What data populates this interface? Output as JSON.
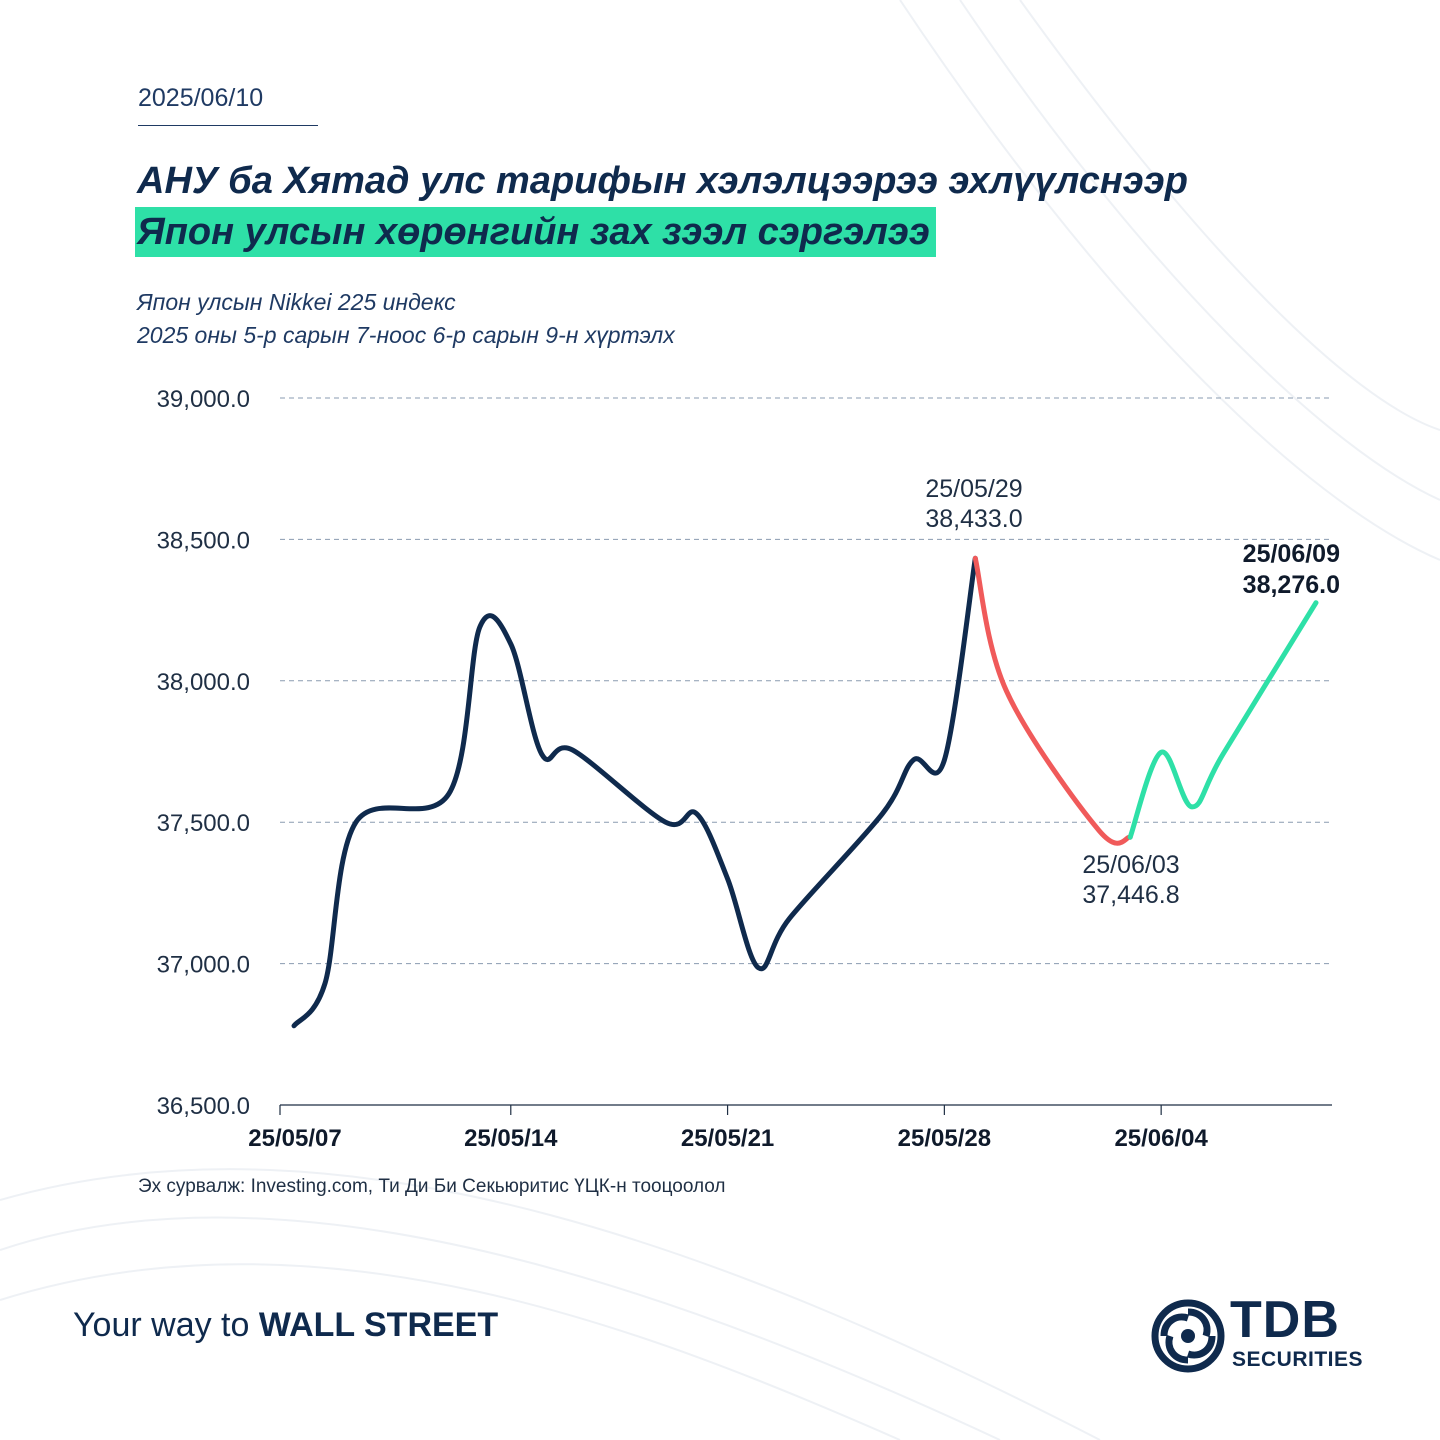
{
  "header": {
    "date": "2025/06/10",
    "title_line1": "АНУ ба Хятад улс тарифын хэлэлцээрээ эхлүүлснээр",
    "title_line2": "Япон улсын хөрөнгийн зах зээл сэргэлээ",
    "subtitle_line1": "Япон улсын Nikkei 225 индекс",
    "subtitle_line2": "2025 оны 5-р сарын 7-ноос 6-р сарын 9-н хүртэлх"
  },
  "colors": {
    "navy": "#0f2a4d",
    "accent_green": "#2ee0a7",
    "decline_red": "#f05a5a",
    "grid": "#8a9bb0"
  },
  "chart_data": {
    "type": "line",
    "title": "Япон улсын Nikkei 225 индекс",
    "xlabel": "",
    "ylabel": "",
    "ylim": [
      36500,
      39000
    ],
    "yticks": [
      36500,
      37000,
      37500,
      38000,
      38500,
      39000
    ],
    "ytick_labels": [
      "36,500.0",
      "37,000.0",
      "37,500.0",
      "38,000.0",
      "38,500.0",
      "39,000.0"
    ],
    "xtick_labels": [
      "25/05/07",
      "25/05/14",
      "25/05/21",
      "25/05/28",
      "25/06/04"
    ],
    "xtick_dates": [
      "2025-05-07",
      "2025-05-14",
      "2025-05-21",
      "2025-05-28",
      "2025-06-04"
    ],
    "xlim": [
      "2025-05-07",
      "2025-06-13"
    ],
    "grid": true,
    "series": [
      {
        "segment": "rise",
        "color": "#0f2a4d",
        "points": [
          [
            "2025-05-07",
            36780
          ],
          [
            "2025-05-08",
            36930
          ],
          [
            "2025-05-09",
            37500
          ],
          [
            "2025-05-12",
            37600
          ],
          [
            "2025-05-13",
            38190
          ],
          [
            "2025-05-14",
            38130
          ],
          [
            "2025-05-15",
            37740
          ],
          [
            "2025-05-16",
            37755
          ],
          [
            "2025-05-19",
            37500
          ],
          [
            "2025-05-20",
            37530
          ],
          [
            "2025-05-21",
            37300
          ],
          [
            "2025-05-22",
            36985
          ],
          [
            "2025-05-23",
            37160
          ],
          [
            "2025-05-26",
            37530
          ],
          [
            "2025-05-27",
            37720
          ],
          [
            "2025-05-28",
            37720
          ],
          [
            "2025-05-29",
            38433
          ]
        ]
      },
      {
        "segment": "decline",
        "color": "#f05a5a",
        "points": [
          [
            "2025-05-29",
            38433
          ],
          [
            "2025-05-30",
            37965
          ],
          [
            "2025-06-02",
            37470
          ],
          [
            "2025-06-03",
            37446.8
          ]
        ]
      },
      {
        "segment": "recovery",
        "color": "#2ee0a7",
        "points": [
          [
            "2025-06-03",
            37446.8
          ],
          [
            "2025-06-04",
            37747
          ],
          [
            "2025-06-05",
            37554
          ],
          [
            "2025-06-06",
            37741
          ],
          [
            "2025-06-09",
            38276
          ]
        ]
      }
    ],
    "annotations": [
      {
        "date_label": "25/05/29",
        "value_label": "38,433.0",
        "bold": false
      },
      {
        "date_label": "25/06/03",
        "value_label": "37,446.8",
        "bold": false
      },
      {
        "date_label": "25/06/09",
        "value_label": "38,276.0",
        "bold": true
      }
    ]
  },
  "footer": {
    "source": "Эх сурвалж: Investing.com, Ти Ди Би Секьюритис ҮЦК-н тооцоолол",
    "tagline_prefix": "Your way to ",
    "tagline_bold": "WALL STREET",
    "logo_name": "TDB",
    "logo_sub": "SECURITIES"
  }
}
